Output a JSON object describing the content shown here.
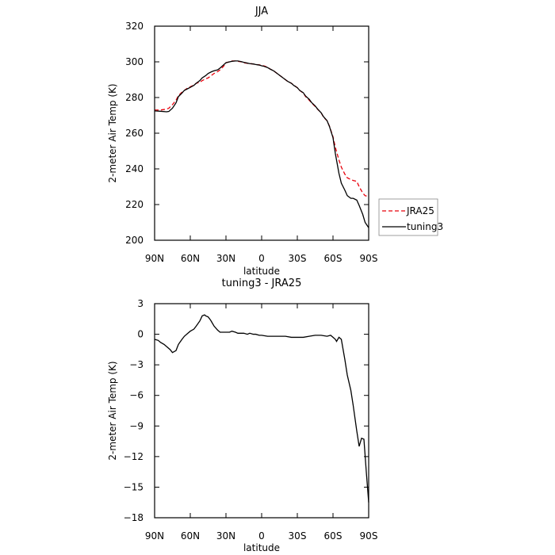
{
  "chart_data": [
    {
      "type": "line",
      "title": "JJA",
      "xlabel": "latitude",
      "ylabel": "2-meter Air Temp (K)",
      "xlim": [
        90,
        -90
      ],
      "ylim": [
        200,
        320
      ],
      "xticks": [
        90,
        60,
        30,
        0,
        -30,
        -60,
        -90
      ],
      "xtick_labels": [
        "90N",
        "60N",
        "30N",
        "0",
        "30S",
        "60S",
        "90S"
      ],
      "yticks": [
        200,
        220,
        240,
        260,
        280,
        300,
        320
      ],
      "ytick_labels": [
        "200",
        "220",
        "240",
        "260",
        "280",
        "300",
        "320"
      ],
      "grid": false,
      "legend": "right-outside",
      "series": [
        {
          "name": "JRA25",
          "color": "#e8000b",
          "dash": "dashed",
          "x": [
            90,
            85,
            80,
            78,
            75,
            72,
            70,
            67,
            65,
            62,
            60,
            57,
            55,
            52,
            50,
            47,
            45,
            42,
            40,
            37,
            35,
            32,
            30,
            27,
            25,
            22,
            20,
            17,
            15,
            12,
            10,
            7,
            5,
            2,
            0,
            -2,
            -5,
            -7,
            -10,
            -12,
            -15,
            -17,
            -20,
            -22,
            -25,
            -27,
            -30,
            -32,
            -35,
            -37,
            -40,
            -42,
            -45,
            -47,
            -50,
            -52,
            -55,
            -57,
            -60,
            -62,
            -65,
            -67,
            -70,
            -72,
            -75,
            -77,
            -80,
            -82,
            -85,
            -87,
            -90
          ],
          "values": [
            273,
            273,
            273.5,
            274,
            276,
            278.5,
            281,
            283,
            284,
            285.5,
            286,
            287,
            288,
            288.5,
            289.5,
            290.5,
            291,
            292.5,
            293.5,
            294.5,
            295.5,
            297.5,
            299.5,
            300,
            300.5,
            300.5,
            300.3,
            300,
            299.5,
            299.2,
            299,
            298.8,
            298.5,
            298.3,
            298,
            297.7,
            297,
            296,
            295,
            294,
            292.5,
            291.5,
            290,
            289,
            288,
            287,
            285.5,
            284,
            282.5,
            280.5,
            278.5,
            277,
            275,
            273.5,
            271.5,
            269,
            267,
            264,
            258,
            252,
            245,
            241,
            237,
            235,
            234,
            233.5,
            233,
            230,
            226.5,
            225,
            224.5
          ]
        },
        {
          "name": "tuning3",
          "color": "#000000",
          "dash": "solid",
          "x": [
            90,
            85,
            80,
            78,
            75,
            72,
            70,
            67,
            65,
            62,
            60,
            57,
            55,
            52,
            50,
            47,
            45,
            42,
            40,
            37,
            35,
            32,
            30,
            27,
            25,
            22,
            20,
            17,
            15,
            12,
            10,
            7,
            5,
            2,
            0,
            -2,
            -5,
            -7,
            -10,
            -12,
            -15,
            -17,
            -20,
            -22,
            -25,
            -27,
            -30,
            -32,
            -35,
            -37,
            -40,
            -42,
            -45,
            -47,
            -50,
            -52,
            -55,
            -57,
            -60,
            -62,
            -65,
            -67,
            -70,
            -72,
            -75,
            -77,
            -80,
            -82,
            -85,
            -87,
            -90
          ],
          "values": [
            272.5,
            272.3,
            272,
            272.2,
            274,
            277,
            280.5,
            282.5,
            284,
            285,
            285.7,
            286.8,
            288,
            289.5,
            291,
            292.3,
            293.5,
            294.5,
            295,
            295.5,
            296.5,
            298.3,
            299.5,
            300,
            300.3,
            300.5,
            300.5,
            300.1,
            299.7,
            299.3,
            299,
            298.8,
            298.5,
            298.2,
            297.8,
            297.5,
            296.8,
            296,
            295,
            294,
            292.5,
            291.5,
            290,
            289,
            288,
            286.8,
            285.5,
            284,
            282.7,
            280.8,
            279,
            277.2,
            275.3,
            273.6,
            271.5,
            269.3,
            267,
            263.8,
            257.5,
            248.5,
            237.5,
            232,
            228,
            225,
            223.5,
            223.5,
            222.5,
            219.5,
            214.5,
            210,
            207
          ]
        }
      ]
    },
    {
      "type": "line",
      "title": "tuning3 - JRA25",
      "xlabel": "latitude",
      "ylabel": "2-meter Air Temp (K)",
      "xlim": [
        90,
        -90
      ],
      "ylim": [
        -18,
        3
      ],
      "xticks": [
        90,
        60,
        30,
        0,
        -30,
        -60,
        -90
      ],
      "xtick_labels": [
        "90N",
        "60N",
        "30N",
        "0",
        "30S",
        "60S",
        "90S"
      ],
      "yticks": [
        3,
        0,
        -3,
        -6,
        -9,
        -12,
        -15,
        -18
      ],
      "ytick_labels": [
        "3",
        "0",
        "−3",
        "−6",
        "−9",
        "−12",
        "−15",
        "−18"
      ],
      "grid": false,
      "series": [
        {
          "color": "#000000",
          "dash": "solid",
          "x": [
            90,
            87,
            85,
            82,
            80,
            77,
            75,
            72,
            70,
            67,
            65,
            62,
            60,
            57,
            55,
            52,
            50,
            48,
            47,
            45,
            43,
            42,
            40,
            37,
            35,
            32,
            30,
            27,
            25,
            22,
            20,
            17,
            15,
            12,
            10,
            7,
            5,
            2,
            0,
            -5,
            -10,
            -15,
            -20,
            -25,
            -30,
            -35,
            -40,
            -45,
            -50,
            -55,
            -58,
            -60,
            -62,
            -63,
            -65,
            -67,
            -70,
            -72,
            -75,
            -77,
            -80,
            -82,
            -84,
            -86,
            -88,
            -90
          ],
          "values": [
            -0.5,
            -0.6,
            -0.8,
            -1.0,
            -1.2,
            -1.5,
            -1.8,
            -1.6,
            -1.0,
            -0.5,
            -0.2,
            0.1,
            0.3,
            0.5,
            0.8,
            1.3,
            1.8,
            1.9,
            1.8,
            1.7,
            1.4,
            1.2,
            0.8,
            0.4,
            0.2,
            0.2,
            0.2,
            0.2,
            0.3,
            0.2,
            0.1,
            0.1,
            0.1,
            0.0,
            0.1,
            0.0,
            0.0,
            -0.1,
            -0.1,
            -0.2,
            -0.2,
            -0.2,
            -0.2,
            -0.3,
            -0.3,
            -0.3,
            -0.2,
            -0.1,
            -0.1,
            -0.2,
            -0.1,
            -0.3,
            -0.5,
            -0.7,
            -0.3,
            -0.5,
            -2.5,
            -4.0,
            -5.5,
            -7.0,
            -9.5,
            -11.0,
            -10.2,
            -10.3,
            -13.5,
            -16.5
          ]
        }
      ]
    }
  ]
}
